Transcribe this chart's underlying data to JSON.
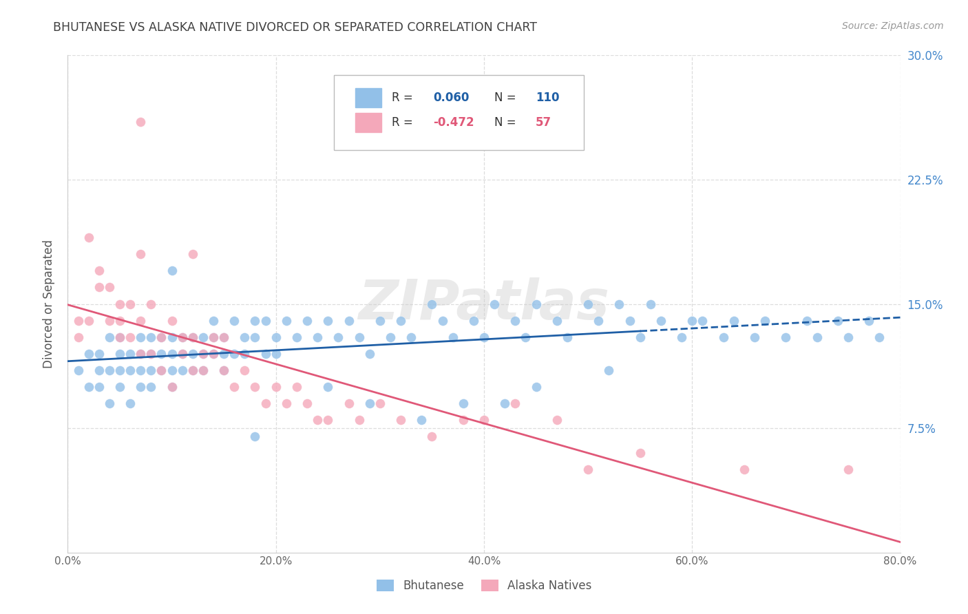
{
  "title": "BHUTANESE VS ALASKA NATIVE DIVORCED OR SEPARATED CORRELATION CHART",
  "source": "Source: ZipAtlas.com",
  "xlabel_ticks": [
    "0.0%",
    "20.0%",
    "40.0%",
    "60.0%",
    "80.0%"
  ],
  "ylabel_ticks": [
    "7.5%",
    "15.0%",
    "22.5%",
    "30.0%"
  ],
  "ylabel_label": "Divorced or Separated",
  "legend_blue_r_val": "0.060",
  "legend_blue_n_val": "110",
  "legend_pink_r_val": "-0.472",
  "legend_pink_n_val": "57",
  "legend_label_blue": "Bhutanese",
  "legend_label_pink": "Alaska Natives",
  "blue_color": "#92C0E8",
  "pink_color": "#F4A8BA",
  "blue_line_color": "#1F5FA6",
  "pink_line_color": "#E05878",
  "watermark": "ZIPatlas",
  "background_color": "#FFFFFF",
  "grid_color": "#DDDDDD",
  "title_color": "#404040",
  "axis_label_color": "#555555",
  "right_tick_color": "#4488CC",
  "xlim": [
    0.0,
    0.8
  ],
  "ylim": [
    0.0,
    0.3
  ],
  "blue_scatter_x": [
    0.01,
    0.02,
    0.02,
    0.03,
    0.03,
    0.03,
    0.04,
    0.04,
    0.04,
    0.05,
    0.05,
    0.05,
    0.05,
    0.06,
    0.06,
    0.06,
    0.07,
    0.07,
    0.07,
    0.07,
    0.08,
    0.08,
    0.08,
    0.08,
    0.09,
    0.09,
    0.09,
    0.1,
    0.1,
    0.1,
    0.1,
    0.11,
    0.11,
    0.11,
    0.12,
    0.12,
    0.12,
    0.13,
    0.13,
    0.13,
    0.14,
    0.14,
    0.14,
    0.15,
    0.15,
    0.15,
    0.16,
    0.16,
    0.17,
    0.17,
    0.18,
    0.18,
    0.19,
    0.19,
    0.2,
    0.2,
    0.21,
    0.22,
    0.23,
    0.24,
    0.25,
    0.26,
    0.27,
    0.28,
    0.29,
    0.3,
    0.31,
    0.32,
    0.33,
    0.35,
    0.36,
    0.37,
    0.39,
    0.4,
    0.41,
    0.43,
    0.44,
    0.45,
    0.47,
    0.48,
    0.5,
    0.51,
    0.53,
    0.54,
    0.55,
    0.56,
    0.57,
    0.59,
    0.61,
    0.63,
    0.64,
    0.66,
    0.67,
    0.69,
    0.71,
    0.72,
    0.74,
    0.75,
    0.77,
    0.78,
    0.29,
    0.18,
    0.25,
    0.38,
    0.52,
    0.45,
    0.1,
    0.34,
    0.6,
    0.42
  ],
  "blue_scatter_y": [
    0.11,
    0.1,
    0.12,
    0.1,
    0.11,
    0.12,
    0.09,
    0.11,
    0.13,
    0.1,
    0.12,
    0.11,
    0.13,
    0.09,
    0.12,
    0.11,
    0.1,
    0.12,
    0.11,
    0.13,
    0.11,
    0.12,
    0.1,
    0.13,
    0.11,
    0.12,
    0.13,
    0.12,
    0.11,
    0.13,
    0.1,
    0.12,
    0.13,
    0.11,
    0.12,
    0.13,
    0.11,
    0.12,
    0.13,
    0.11,
    0.13,
    0.12,
    0.14,
    0.12,
    0.13,
    0.11,
    0.14,
    0.12,
    0.13,
    0.12,
    0.14,
    0.13,
    0.12,
    0.14,
    0.13,
    0.12,
    0.14,
    0.13,
    0.14,
    0.13,
    0.14,
    0.13,
    0.14,
    0.13,
    0.12,
    0.14,
    0.13,
    0.14,
    0.13,
    0.15,
    0.14,
    0.13,
    0.14,
    0.13,
    0.15,
    0.14,
    0.13,
    0.15,
    0.14,
    0.13,
    0.15,
    0.14,
    0.15,
    0.14,
    0.13,
    0.15,
    0.14,
    0.13,
    0.14,
    0.13,
    0.14,
    0.13,
    0.14,
    0.13,
    0.14,
    0.13,
    0.14,
    0.13,
    0.14,
    0.13,
    0.09,
    0.07,
    0.1,
    0.09,
    0.11,
    0.1,
    0.17,
    0.08,
    0.14,
    0.09
  ],
  "pink_scatter_x": [
    0.01,
    0.01,
    0.02,
    0.02,
    0.03,
    0.03,
    0.04,
    0.04,
    0.05,
    0.05,
    0.05,
    0.06,
    0.06,
    0.07,
    0.07,
    0.07,
    0.08,
    0.08,
    0.09,
    0.09,
    0.1,
    0.1,
    0.11,
    0.11,
    0.12,
    0.12,
    0.13,
    0.13,
    0.14,
    0.14,
    0.15,
    0.15,
    0.16,
    0.17,
    0.18,
    0.19,
    0.2,
    0.21,
    0.22,
    0.23,
    0.24,
    0.25,
    0.27,
    0.28,
    0.3,
    0.32,
    0.35,
    0.38,
    0.4,
    0.43,
    0.47,
    0.5,
    0.55,
    0.65,
    0.75,
    0.07,
    0.12
  ],
  "pink_scatter_y": [
    0.14,
    0.13,
    0.19,
    0.14,
    0.17,
    0.16,
    0.14,
    0.16,
    0.14,
    0.13,
    0.15,
    0.15,
    0.13,
    0.14,
    0.12,
    0.18,
    0.12,
    0.15,
    0.13,
    0.11,
    0.14,
    0.1,
    0.13,
    0.12,
    0.11,
    0.13,
    0.12,
    0.11,
    0.13,
    0.12,
    0.11,
    0.13,
    0.1,
    0.11,
    0.1,
    0.09,
    0.1,
    0.09,
    0.1,
    0.09,
    0.08,
    0.08,
    0.09,
    0.08,
    0.09,
    0.08,
    0.07,
    0.08,
    0.08,
    0.09,
    0.08,
    0.05,
    0.06,
    0.05,
    0.05,
    0.26,
    0.18
  ]
}
